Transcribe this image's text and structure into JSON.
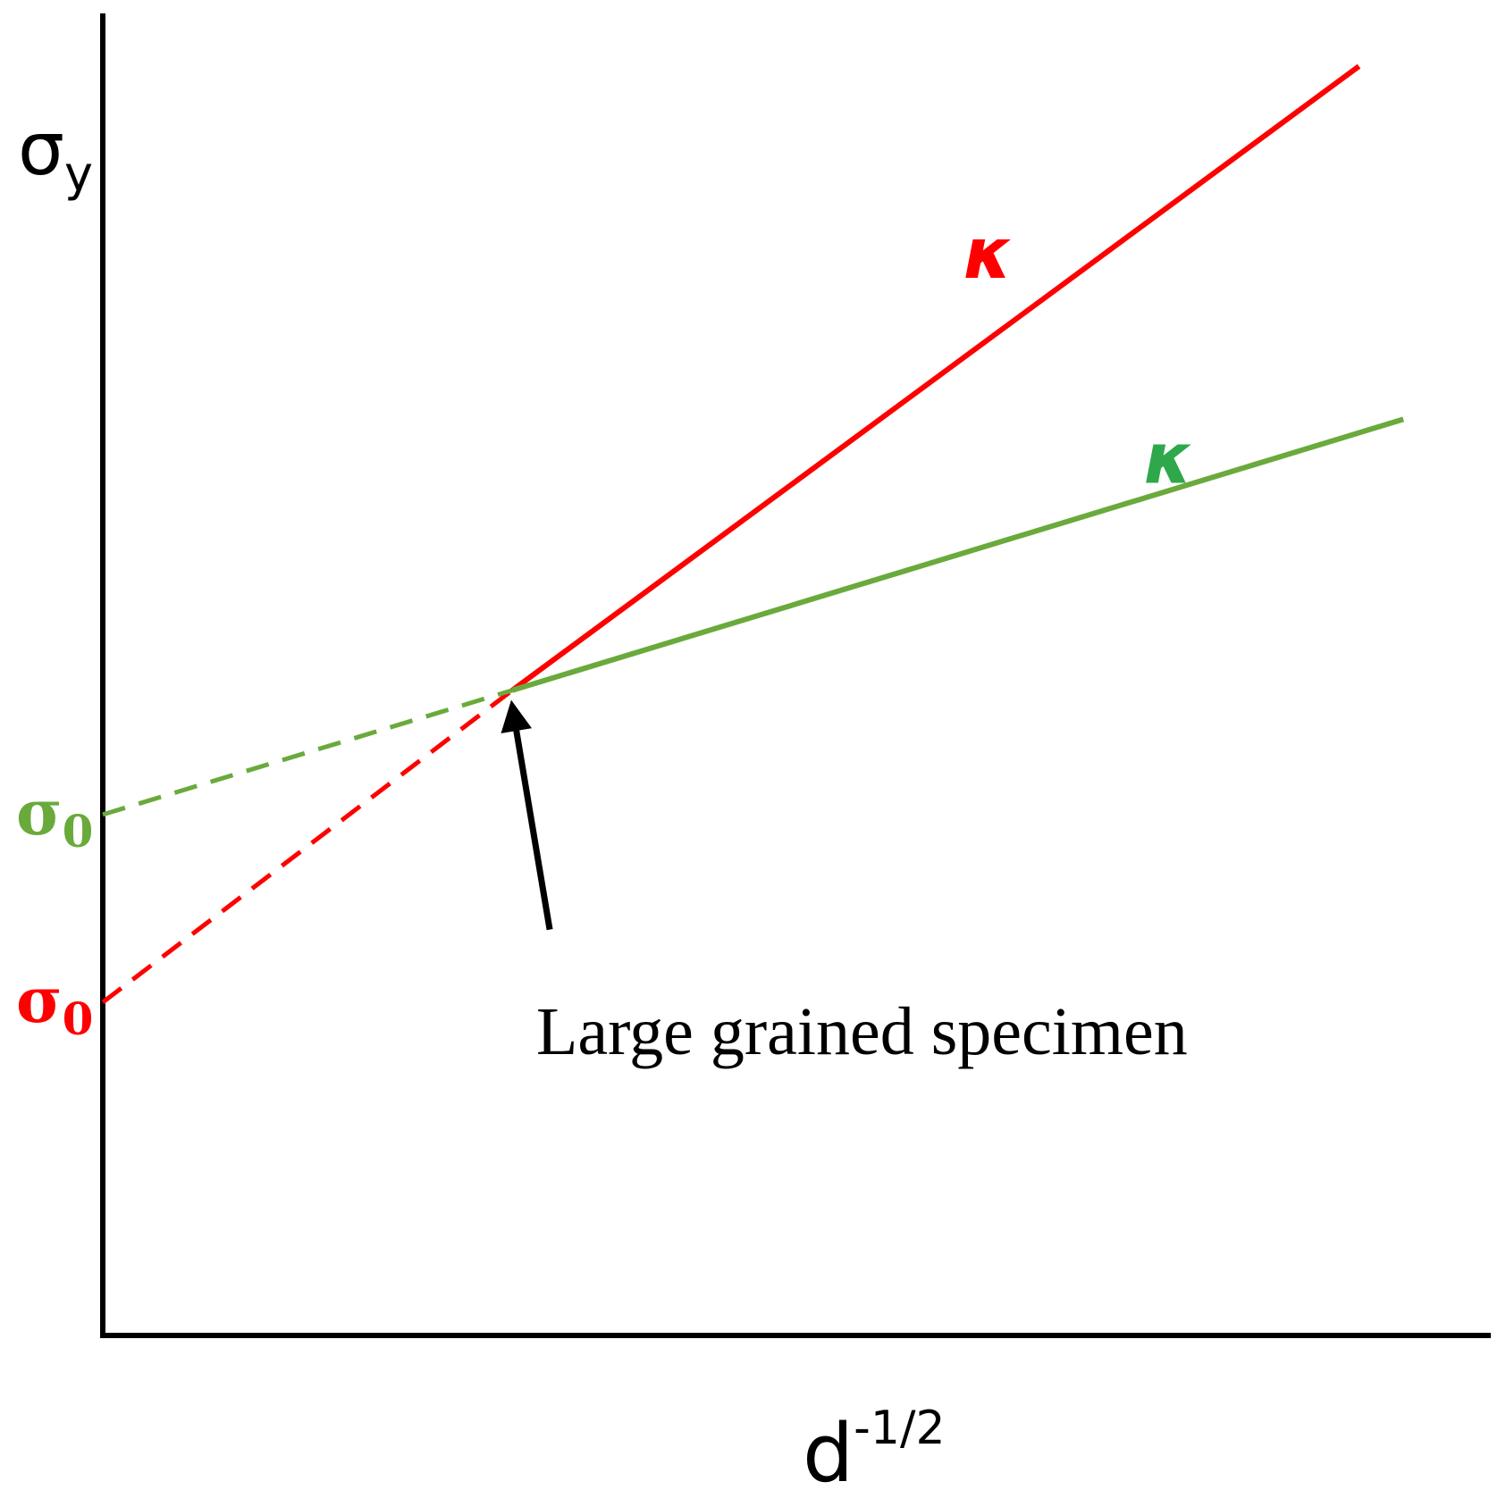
{
  "chart_data": {
    "type": "line",
    "title": "",
    "ylabel": {
      "base": "σ",
      "sub": "y"
    },
    "xlabel": {
      "base": "d",
      "sup": "-1/2"
    },
    "xlim": [
      0,
      1
    ],
    "ylim": [
      0,
      1
    ],
    "grid": false,
    "colors": {
      "red": "#ff0000",
      "green": "#6aaa3c",
      "axis": "#000000"
    },
    "series": [
      {
        "key": "red",
        "color": "#ff0000",
        "intercept_label": {
          "base": "σ",
          "sub": "0"
        },
        "slope_label": "κ",
        "slope_label_color": "#ff0000",
        "solid": [
          [
            0.295,
            0.488
          ],
          [
            0.905,
            0.96
          ]
        ],
        "dashed": [
          [
            0.0,
            0.252
          ],
          [
            0.295,
            0.488
          ]
        ]
      },
      {
        "key": "green",
        "color": "#6aaa3c",
        "intercept_label": {
          "base": "σ",
          "sub": "0"
        },
        "slope_label": "κ",
        "slope_label_color": "#2ea84a",
        "solid": [
          [
            0.295,
            0.488
          ],
          [
            0.937,
            0.693
          ]
        ],
        "dashed": [
          [
            0.0,
            0.394
          ],
          [
            0.295,
            0.488
          ]
        ]
      }
    ],
    "annotations": [
      {
        "text": "Large grained specimen",
        "arrow_to": [
          0.295,
          0.476
        ],
        "arrow_from": [
          0.322,
          0.307
        ]
      }
    ]
  }
}
